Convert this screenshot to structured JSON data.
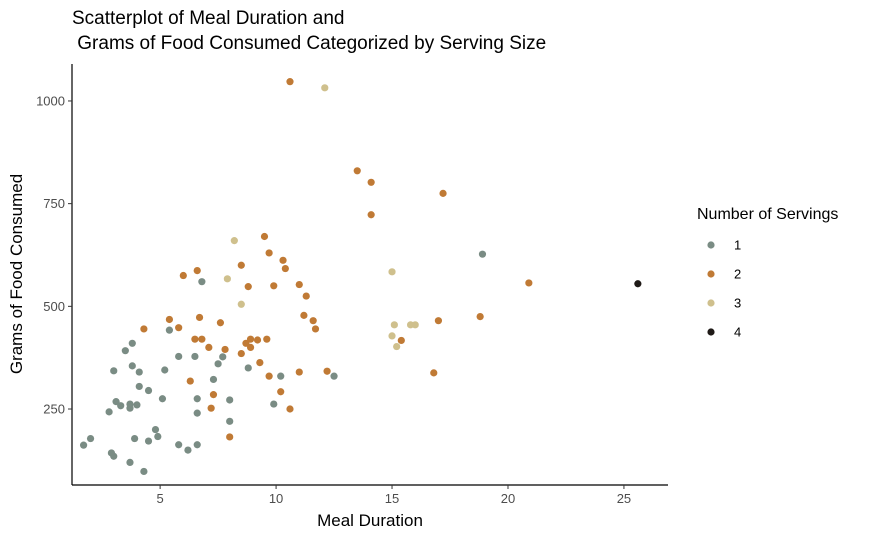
{
  "chart_data": {
    "type": "scatter",
    "title_line1": "Scatterplot of Meal Duration and",
    "title_line2": " Grams of Food Consumed Categorized by Serving Size",
    "xlabel": "Meal Duration",
    "ylabel": "Grams of Food Consumed",
    "xlim": [
      1.2,
      26.9
    ],
    "ylim": [
      65,
      1090
    ],
    "x_ticks": [
      5,
      10,
      15,
      20,
      25
    ],
    "y_ticks": [
      250,
      500,
      750,
      1000
    ],
    "grid": false,
    "legend": {
      "title": "Number of Servings",
      "position": "right"
    },
    "series": [
      {
        "name": "1",
        "color": "#7a8c84",
        "points": [
          [
            1.7,
            162
          ],
          [
            2.0,
            178
          ],
          [
            2.8,
            243
          ],
          [
            2.9,
            143
          ],
          [
            3.0,
            135
          ],
          [
            3.0,
            343
          ],
          [
            3.1,
            268
          ],
          [
            3.3,
            258
          ],
          [
            3.5,
            392
          ],
          [
            3.7,
            262
          ],
          [
            3.7,
            252
          ],
          [
            3.7,
            120
          ],
          [
            3.8,
            410
          ],
          [
            3.8,
            355
          ],
          [
            4.0,
            260
          ],
          [
            3.9,
            178
          ],
          [
            4.1,
            340
          ],
          [
            4.1,
            305
          ],
          [
            4.3,
            98
          ],
          [
            4.5,
            172
          ],
          [
            4.5,
            295
          ],
          [
            4.8,
            200
          ],
          [
            4.9,
            183
          ],
          [
            5.1,
            275
          ],
          [
            5.2,
            345
          ],
          [
            5.4,
            442
          ],
          [
            5.8,
            163
          ],
          [
            5.8,
            378
          ],
          [
            6.2,
            150
          ],
          [
            6.5,
            378
          ],
          [
            6.6,
            240
          ],
          [
            6.6,
            163
          ],
          [
            6.6,
            275
          ],
          [
            6.8,
            560
          ],
          [
            7.3,
            322
          ],
          [
            7.5,
            360
          ],
          [
            7.7,
            377
          ],
          [
            8.0,
            220
          ],
          [
            8.0,
            272
          ],
          [
            8.8,
            350
          ],
          [
            9.9,
            262
          ],
          [
            10.2,
            330
          ],
          [
            12.5,
            330
          ],
          [
            18.9,
            627
          ]
        ]
      },
      {
        "name": "2",
        "color": "#c07a35",
        "points": [
          [
            4.3,
            445
          ],
          [
            5.4,
            468
          ],
          [
            5.8,
            448
          ],
          [
            6.0,
            575
          ],
          [
            6.3,
            318
          ],
          [
            6.5,
            420
          ],
          [
            6.6,
            587
          ],
          [
            6.7,
            473
          ],
          [
            6.8,
            420
          ],
          [
            7.1,
            400
          ],
          [
            7.2,
            252
          ],
          [
            7.3,
            285
          ],
          [
            7.6,
            460
          ],
          [
            7.8,
            395
          ],
          [
            8.0,
            182
          ],
          [
            8.5,
            600
          ],
          [
            8.5,
            385
          ],
          [
            8.7,
            410
          ],
          [
            8.8,
            548
          ],
          [
            8.9,
            420
          ],
          [
            8.9,
            400
          ],
          [
            9.2,
            418
          ],
          [
            9.3,
            363
          ],
          [
            9.5,
            670
          ],
          [
            9.6,
            420
          ],
          [
            9.7,
            630
          ],
          [
            9.7,
            330
          ],
          [
            9.9,
            550
          ],
          [
            10.2,
            292
          ],
          [
            10.3,
            612
          ],
          [
            10.4,
            592
          ],
          [
            10.6,
            250
          ],
          [
            10.6,
            1047
          ],
          [
            11.0,
            553
          ],
          [
            11.0,
            340
          ],
          [
            11.2,
            478
          ],
          [
            11.3,
            525
          ],
          [
            11.6,
            465
          ],
          [
            11.7,
            445
          ],
          [
            12.2,
            342
          ],
          [
            13.5,
            830
          ],
          [
            14.1,
            802
          ],
          [
            14.1,
            723
          ],
          [
            15.4,
            417
          ],
          [
            16.8,
            338
          ],
          [
            17.0,
            465
          ],
          [
            17.2,
            775
          ],
          [
            18.8,
            475
          ],
          [
            20.9,
            557
          ]
        ]
      },
      {
        "name": "3",
        "color": "#cfc08d",
        "points": [
          [
            7.9,
            567
          ],
          [
            8.2,
            660
          ],
          [
            8.5,
            505
          ],
          [
            12.1,
            1032
          ],
          [
            15.0,
            584
          ],
          [
            15.0,
            428
          ],
          [
            15.1,
            455
          ],
          [
            15.2,
            402
          ],
          [
            15.8,
            455
          ],
          [
            16.0,
            455
          ]
        ]
      },
      {
        "name": "4",
        "color": "#1f1a17",
        "points": [
          [
            25.6,
            555
          ]
        ]
      }
    ]
  }
}
